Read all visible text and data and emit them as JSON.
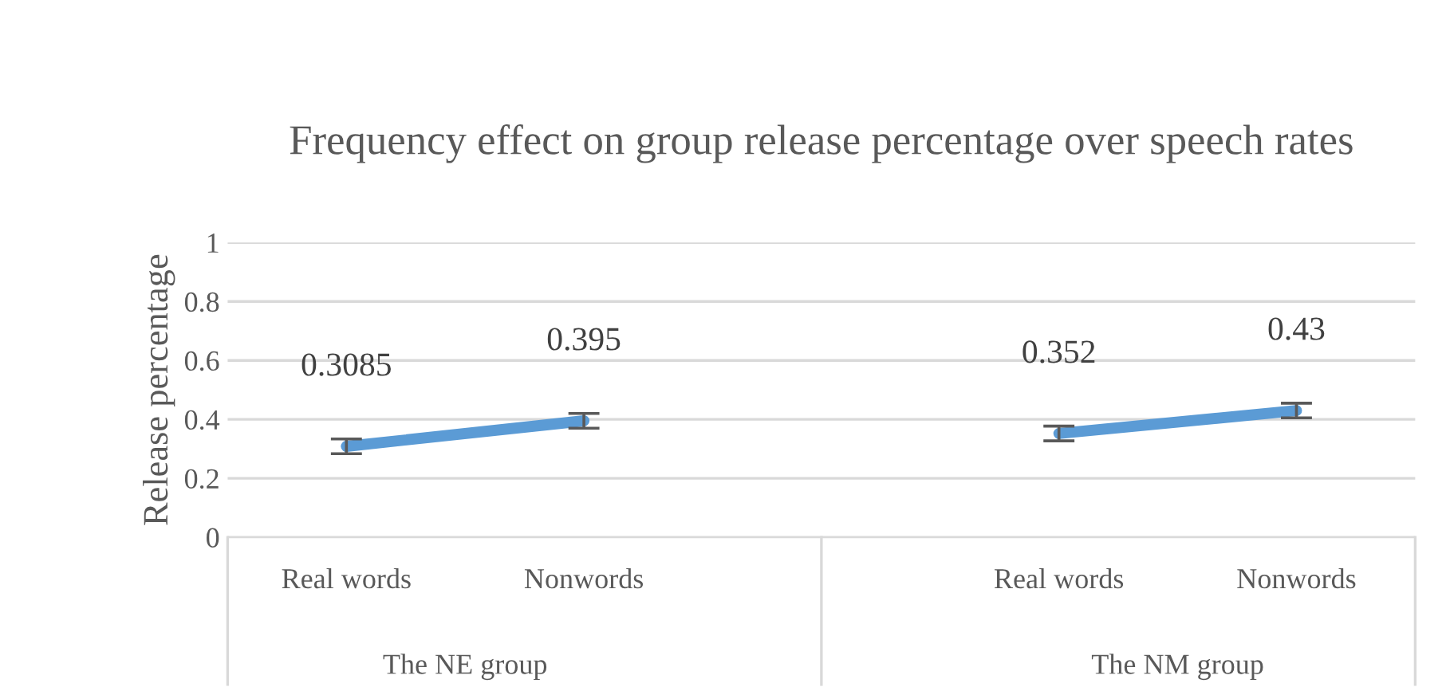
{
  "chart_data": {
    "type": "line",
    "title": "Frequency effect on group release percentage over speech rates",
    "ylabel": "Release percentage",
    "categories": [
      "Real words",
      "Nonwords",
      null,
      "Real words",
      "Nonwords"
    ],
    "series": [
      {
        "color": "#5b9bd5",
        "values": [
          0.3085,
          0.395,
          null,
          0.352,
          0.43
        ],
        "errors": [
          0.025,
          0.025,
          null,
          0.025,
          0.025
        ]
      }
    ],
    "annotations": [
      "The NE group",
      "The NM group"
    ],
    "ylim": [
      0,
      1
    ],
    "yticks": [
      0,
      0.2,
      0.4,
      0.6,
      0.8,
      1
    ],
    "grid": "y",
    "data_labels": true,
    "marker": "none",
    "line_style": "solid"
  }
}
